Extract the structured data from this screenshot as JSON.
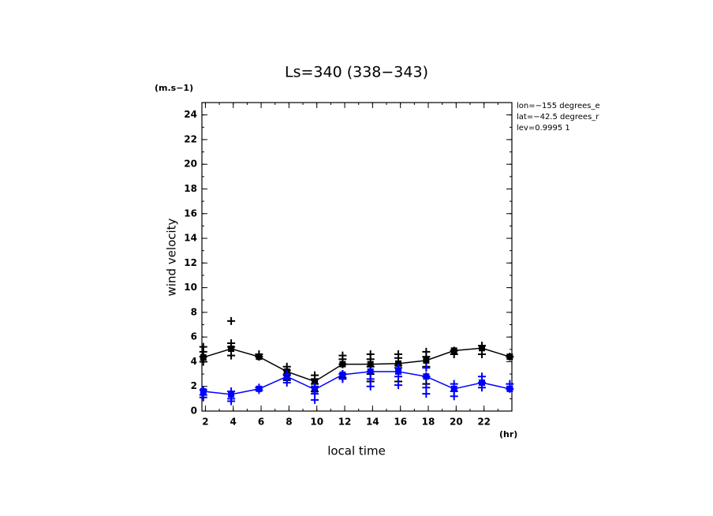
{
  "chart_data": {
    "type": "line",
    "title": "Ls=340 (338−343)",
    "y_unit": "(m.s−1)",
    "y_label": "wind velocity",
    "x_label": "local time",
    "x_unit": "(hr)",
    "annotations": [
      "lon=−155 degrees_e",
      "lat=−42.5 degrees_r",
      "lev=0.9995 1"
    ],
    "xlim": [
      1.75,
      24
    ],
    "ylim": [
      0,
      25
    ],
    "xticks": [
      2,
      4,
      6,
      8,
      10,
      12,
      14,
      16,
      18,
      20,
      22
    ],
    "yticks": [
      0,
      2,
      4,
      6,
      8,
      10,
      12,
      14,
      16,
      18,
      20,
      22,
      24
    ],
    "minor_tick_step": 1,
    "series": [
      {
        "style": "line",
        "marker": "square",
        "color": "#000000",
        "x": [
          1.85,
          3.85,
          5.85,
          7.85,
          9.85,
          11.85,
          13.85,
          15.85,
          17.85,
          19.85,
          21.85,
          23.85
        ],
        "values": [
          4.35,
          5.05,
          4.4,
          3.2,
          2.4,
          3.8,
          3.8,
          3.85,
          4.1,
          4.9,
          5.1,
          4.4
        ]
      },
      {
        "style": "line",
        "marker": "square",
        "color": "#0000ff",
        "x": [
          1.85,
          3.85,
          5.85,
          7.85,
          9.85,
          11.85,
          13.85,
          15.85,
          17.85,
          19.85,
          21.85,
          23.85
        ],
        "values": [
          1.6,
          1.35,
          1.8,
          2.8,
          1.75,
          2.95,
          3.2,
          3.2,
          2.8,
          1.8,
          2.3,
          1.8
        ]
      },
      {
        "style": "scatter",
        "marker": "plus",
        "color": "#000000",
        "x": [
          1.85,
          1.85,
          1.85,
          1.85,
          3.85,
          3.85,
          3.85,
          3.85,
          5.85,
          5.85,
          7.85,
          7.85,
          7.85,
          7.85,
          9.85,
          9.85,
          9.85,
          9.85,
          11.85,
          11.85,
          11.85,
          11.85,
          11.85,
          13.85,
          13.85,
          13.85,
          13.85,
          13.85,
          15.85,
          15.85,
          15.85,
          15.85,
          17.85,
          17.85,
          17.85,
          17.85,
          17.85,
          19.85,
          19.85,
          21.85,
          21.85,
          23.85
        ],
        "values": [
          4.0,
          4.4,
          4.8,
          5.2,
          7.3,
          5.5,
          5.2,
          4.5,
          4.6,
          4.4,
          3.6,
          3.3,
          2.9,
          2.5,
          2.9,
          2.6,
          2.2,
          1.6,
          4.5,
          4.2,
          3.8,
          3.0,
          2.7,
          4.6,
          4.2,
          3.6,
          3.0,
          2.4,
          4.6,
          4.3,
          3.7,
          2.4,
          4.8,
          4.4,
          3.6,
          2.8,
          2.2,
          4.9,
          4.6,
          5.3,
          4.6,
          4.4
        ]
      },
      {
        "style": "scatter",
        "marker": "plus",
        "color": "#0000ff",
        "x": [
          1.85,
          1.85,
          1.85,
          3.85,
          3.85,
          3.85,
          5.85,
          5.85,
          7.85,
          7.85,
          7.85,
          9.85,
          9.85,
          9.85,
          11.85,
          11.85,
          13.85,
          13.85,
          13.85,
          15.85,
          15.85,
          15.85,
          17.85,
          17.85,
          17.85,
          17.85,
          19.85,
          19.85,
          19.85,
          21.85,
          21.85,
          21.85,
          23.85,
          23.85
        ],
        "values": [
          1.7,
          1.3,
          1.1,
          1.6,
          1.0,
          0.8,
          1.9,
          1.7,
          3.0,
          2.6,
          2.3,
          2.0,
          1.4,
          0.9,
          3.0,
          2.6,
          3.2,
          2.6,
          2.0,
          3.5,
          2.8,
          2.1,
          3.5,
          2.8,
          1.9,
          1.4,
          2.2,
          1.6,
          1.2,
          2.8,
          2.3,
          1.9,
          2.2,
          1.8
        ]
      }
    ]
  }
}
